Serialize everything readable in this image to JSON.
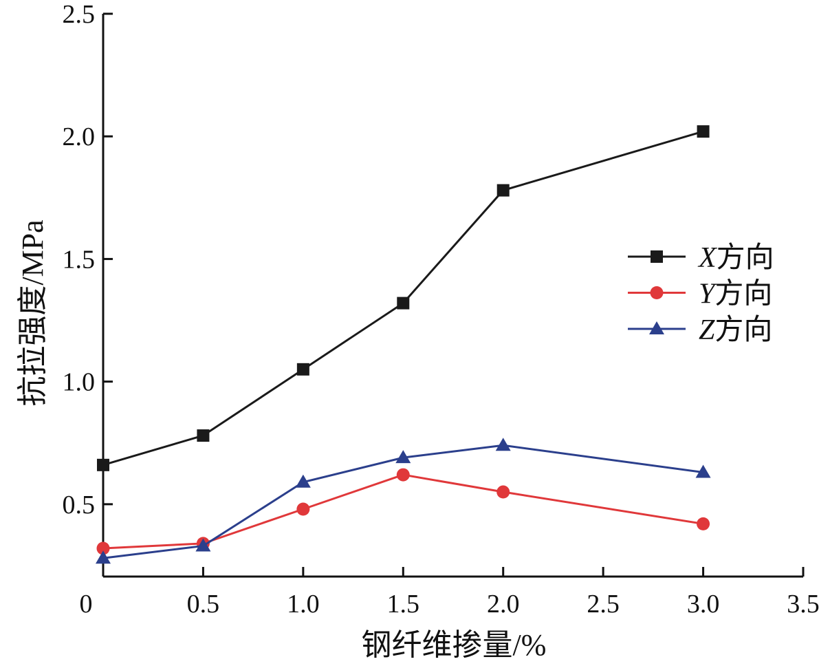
{
  "chart_data": {
    "type": "line",
    "title": "",
    "xlabel": "钢纤维掺量/%",
    "ylabel": "抗拉强度/MPa",
    "xlim": [
      0,
      3.5
    ],
    "ylim": [
      0.205,
      2.5
    ],
    "x_ticks": [
      0,
      0.5,
      1.0,
      1.5,
      2.0,
      2.5,
      3.0,
      3.5
    ],
    "x_tick_labels": [
      "0",
      "0.5",
      "1.0",
      "1.5",
      "2.0",
      "2.5",
      "3.0",
      "3.5"
    ],
    "y_ticks": [
      0.5,
      1.0,
      1.5,
      2.0,
      2.5
    ],
    "y_tick_labels": [
      "0.5",
      "1.0",
      "1.5",
      "2.0",
      "2.5"
    ],
    "grid": false,
    "legend_position": "right",
    "x": [
      0,
      0.5,
      1.0,
      1.5,
      2.0,
      3.0
    ],
    "series": [
      {
        "name": "X方向",
        "axis_letter": "X",
        "suffix": "方向",
        "color": "#1a1a1a",
        "marker": "square",
        "values": [
          0.66,
          0.78,
          1.05,
          1.32,
          1.78,
          2.02
        ]
      },
      {
        "name": "Y方向",
        "axis_letter": "Y",
        "suffix": "方向",
        "color": "#e0383a",
        "marker": "circle",
        "values": [
          0.32,
          0.34,
          0.48,
          0.62,
          0.55,
          0.42
        ]
      },
      {
        "name": "Z方向",
        "axis_letter": "Z",
        "suffix": "方向",
        "color": "#2b3f8c",
        "marker": "triangle",
        "values": [
          0.28,
          0.33,
          0.59,
          0.69,
          0.74,
          0.63
        ]
      }
    ]
  }
}
